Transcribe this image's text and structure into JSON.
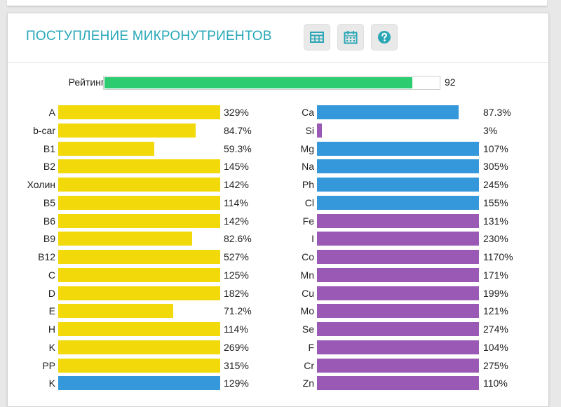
{
  "panel": {
    "title": "Поступление микронутриентов",
    "title_color": "#29a8b8",
    "buttons": [
      {
        "icon": "table-icon"
      },
      {
        "icon": "calendar-icon"
      },
      {
        "icon": "help-icon"
      }
    ]
  },
  "rating": {
    "label": "Рейтинг",
    "value": "92",
    "fraction": 0.92,
    "color": "#2ecc71"
  },
  "colors": {
    "vitamin": "#f2d90a",
    "mineral_blue": "#3498db",
    "mineral_purple": "#9b59b6"
  },
  "chart_data": {
    "type": "bar",
    "orientation": "horizontal",
    "groups": [
      {
        "items": [
          {
            "label": "A",
            "value": 329,
            "text": "329%",
            "color": "#f2d90a"
          },
          {
            "label": "b-car",
            "value": 84.7,
            "text": "84.7%",
            "color": "#f2d90a"
          },
          {
            "label": "B1",
            "value": 59.3,
            "text": "59.3%",
            "color": "#f2d90a"
          },
          {
            "label": "B2",
            "value": 145,
            "text": "145%",
            "color": "#f2d90a"
          },
          {
            "label": "Холин",
            "value": 142,
            "text": "142%",
            "color": "#f2d90a"
          },
          {
            "label": "B5",
            "value": 114,
            "text": "114%",
            "color": "#f2d90a"
          },
          {
            "label": "B6",
            "value": 142,
            "text": "142%",
            "color": "#f2d90a"
          },
          {
            "label": "B9",
            "value": 82.6,
            "text": "82.6%",
            "color": "#f2d90a"
          },
          {
            "label": "B12",
            "value": 527,
            "text": "527%",
            "color": "#f2d90a"
          },
          {
            "label": "C",
            "value": 125,
            "text": "125%",
            "color": "#f2d90a"
          },
          {
            "label": "D",
            "value": 182,
            "text": "182%",
            "color": "#f2d90a"
          },
          {
            "label": "E",
            "value": 71.2,
            "text": "71.2%",
            "color": "#f2d90a"
          },
          {
            "label": "H",
            "value": 114,
            "text": "114%",
            "color": "#f2d90a"
          },
          {
            "label": "K",
            "value": 269,
            "text": "269%",
            "color": "#f2d90a"
          },
          {
            "label": "PP",
            "value": 315,
            "text": "315%",
            "color": "#f2d90a"
          },
          {
            "label": "K",
            "value": 129,
            "text": "129%",
            "color": "#3498db"
          }
        ]
      },
      {
        "items": [
          {
            "label": "Ca",
            "value": 87.3,
            "text": "87.3%",
            "color": "#3498db"
          },
          {
            "label": "Si",
            "value": 3,
            "text": "3%",
            "color": "#9b59b6"
          },
          {
            "label": "Mg",
            "value": 107,
            "text": "107%",
            "color": "#3498db"
          },
          {
            "label": "Na",
            "value": 305,
            "text": "305%",
            "color": "#3498db"
          },
          {
            "label": "Ph",
            "value": 245,
            "text": "245%",
            "color": "#3498db"
          },
          {
            "label": "Cl",
            "value": 155,
            "text": "155%",
            "color": "#3498db"
          },
          {
            "label": "Fe",
            "value": 131,
            "text": "131%",
            "color": "#9b59b6"
          },
          {
            "label": "I",
            "value": 230,
            "text": "230%",
            "color": "#9b59b6"
          },
          {
            "label": "Co",
            "value": 1170,
            "text": "1170%",
            "color": "#9b59b6"
          },
          {
            "label": "Mn",
            "value": 171,
            "text": "171%",
            "color": "#9b59b6"
          },
          {
            "label": "Cu",
            "value": 199,
            "text": "199%",
            "color": "#9b59b6"
          },
          {
            "label": "Mo",
            "value": 121,
            "text": "121%",
            "color": "#9b59b6"
          },
          {
            "label": "Se",
            "value": 274,
            "text": "274%",
            "color": "#9b59b6"
          },
          {
            "label": "F",
            "value": 104,
            "text": "104%",
            "color": "#9b59b6"
          },
          {
            "label": "Cr",
            "value": 275,
            "text": "275%",
            "color": "#9b59b6"
          },
          {
            "label": "Zn",
            "value": 110,
            "text": "110%",
            "color": "#9b59b6"
          }
        ]
      }
    ]
  }
}
